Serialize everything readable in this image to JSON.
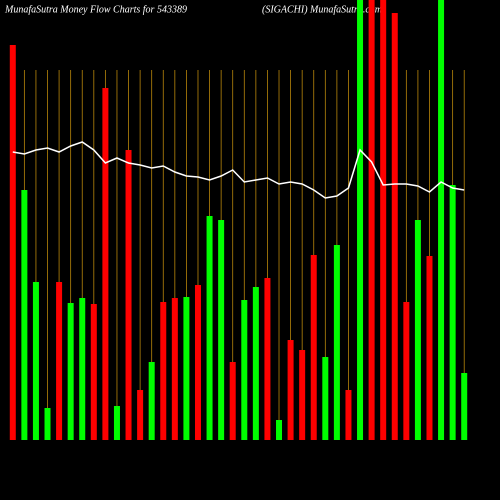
{
  "chart_data": {
    "type": "bar",
    "title": "MunafaSutra  Money Flow  Charts for 543389",
    "subtitle": "(SIGACHI) MunafaSutra.com",
    "ylim": [
      0,
      440
    ],
    "values": [
      395,
      250,
      158,
      32,
      158,
      137,
      142,
      136,
      352,
      34,
      290,
      50,
      78,
      138,
      142,
      143,
      155,
      224,
      220,
      78,
      140,
      153,
      162,
      20,
      100,
      90,
      185,
      83,
      195,
      50,
      440,
      440,
      440,
      427,
      138,
      220,
      184,
      440,
      255,
      67
    ],
    "colors": [
      "#ff0000",
      "#00ff00",
      "#00ff00",
      "#00ff00",
      "#ff0000",
      "#00ff00",
      "#00ff00",
      "#ff0000",
      "#ff0000",
      "#00ff00",
      "#ff0000",
      "#ff0000",
      "#00ff00",
      "#ff0000",
      "#ff0000",
      "#00ff00",
      "#ff0000",
      "#00ff00",
      "#00ff00",
      "#ff0000",
      "#00ff00",
      "#00ff00",
      "#ff0000",
      "#00ff00",
      "#ff0000",
      "#ff0000",
      "#ff0000",
      "#00ff00",
      "#00ff00",
      "#ff0000",
      "#00ff00",
      "#ff0000",
      "#ff0000",
      "#ff0000",
      "#ff0000",
      "#00ff00",
      "#ff0000",
      "#00ff00",
      "#00ff00",
      "#00ff00"
    ],
    "line": {
      "color": "#ffffff",
      "values": [
        288,
        286,
        290,
        292,
        288,
        294,
        298,
        290,
        277,
        282,
        277,
        275,
        272,
        274,
        268,
        264,
        263,
        260,
        264,
        270,
        258,
        260,
        262,
        256,
        258,
        256,
        250,
        242,
        244,
        252,
        290,
        278,
        255,
        256,
        256,
        254,
        248,
        258,
        252,
        250
      ]
    },
    "grid_color": "#b8860b"
  }
}
